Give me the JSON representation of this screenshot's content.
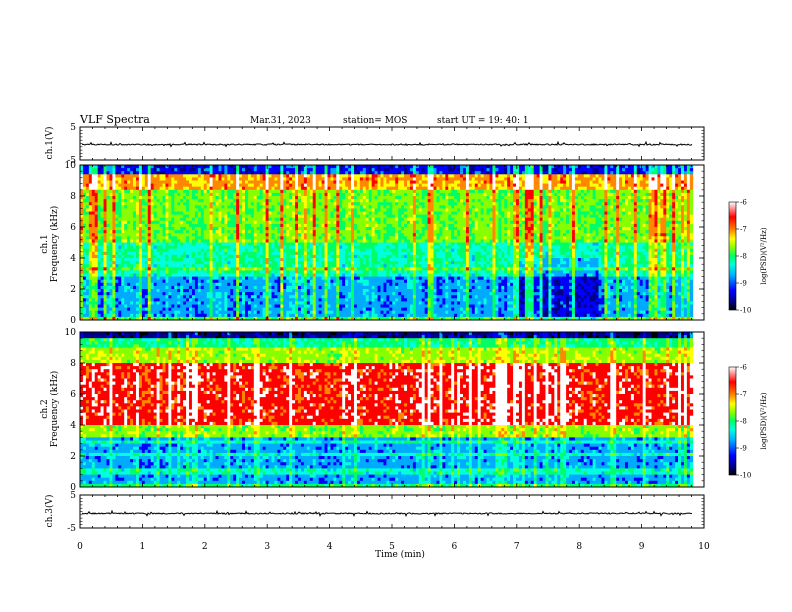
{
  "header": {
    "title": "VLF Spectra",
    "date": "Mar.31, 2023",
    "station": "station= MOS",
    "start_ut": "start  UT =   19: 40: 1"
  },
  "colors": {
    "colormap": [
      "#000000",
      "#00008b",
      "#0000ff",
      "#00aaff",
      "#00ffdd",
      "#00ff66",
      "#88ff00",
      "#ffff00",
      "#ff8800",
      "#ff0000",
      "#ffffff"
    ],
    "waveform": "#000000"
  },
  "chart_data": [
    {
      "type": "line",
      "panel": "ch1-waveform",
      "ylabel": "ch.1(V)",
      "ylim": [
        -5,
        5
      ],
      "yticks": [
        "5",
        "-5"
      ],
      "xlim": [
        0,
        10
      ],
      "series": [
        {
          "values_description_free": true,
          "level": -0.3
        }
      ]
    },
    {
      "type": "heatmap",
      "panel": "ch1-spectrogram",
      "ylabel": "ch.1\nFrequency (kHz)",
      "ylim": [
        0,
        10
      ],
      "yticks": [
        "0",
        "2",
        "4",
        "6",
        "8",
        "10"
      ],
      "xlim": [
        0,
        10
      ],
      "colorbar": {
        "label": "log(PSD)(V²/Hz)",
        "ticks": [
          "-6",
          "-7",
          "-8",
          "-9",
          "-10"
        ],
        "range": [
          -10,
          -6
        ]
      }
    },
    {
      "type": "heatmap",
      "panel": "ch2-spectrogram",
      "ylabel": "ch.2\nFrequency (kHz)",
      "ylim": [
        0,
        10
      ],
      "yticks": [
        "0",
        "2",
        "4",
        "6",
        "8",
        "10"
      ],
      "xlim": [
        0,
        10
      ],
      "colorbar": {
        "label": "log(PSD)(V²/Hz)",
        "ticks": [
          "-6",
          "-7",
          "-8",
          "-9",
          "-10"
        ],
        "range": [
          -10,
          -6
        ]
      }
    },
    {
      "type": "line",
      "panel": "ch3-waveform",
      "ylabel": "ch.3(V)",
      "ylim": [
        -5,
        5
      ],
      "yticks": [
        "5",
        "-5"
      ],
      "xlim": [
        0,
        10
      ],
      "series": [
        {
          "level": -0.6
        }
      ]
    }
  ],
  "xaxis": {
    "label": "Time (min)",
    "ticks": [
      "0",
      "1",
      "2",
      "3",
      "4",
      "5",
      "6",
      "7",
      "8",
      "9",
      "10"
    ],
    "data_end": 9.82
  },
  "ylabels": {
    "ch1_wave": "ch.1(V)",
    "ch1_spec_a": "ch.1",
    "ch1_spec_b": "Frequency (kHz)",
    "ch2_spec_a": "ch.2",
    "ch2_spec_b": "Frequency (kHz)",
    "ch3_wave": "ch.3(V)"
  },
  "colorbar_label": "log(PSD)(V²/Hz)"
}
